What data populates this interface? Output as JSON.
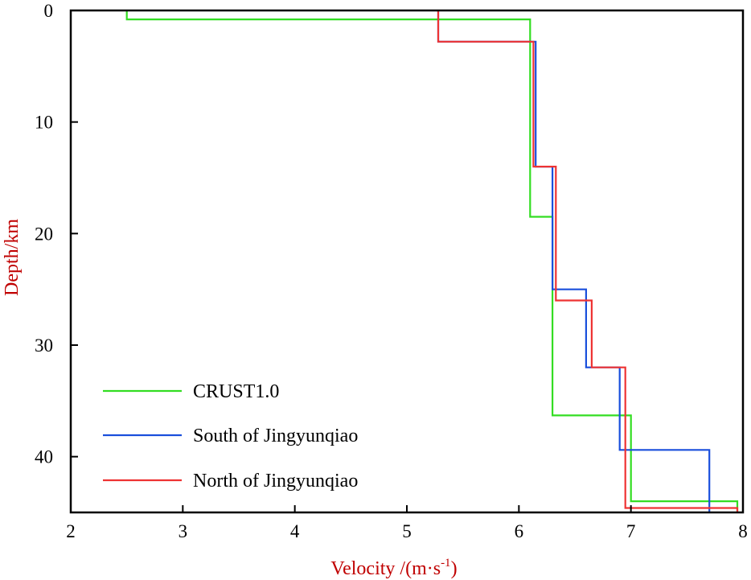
{
  "chart_data": {
    "type": "line",
    "title": "",
    "xlabel": "Velocity /(m·s",
    "xlabel_superscript": "-1",
    "xlabel_suffix": ")",
    "ylabel": "Depth/km",
    "xlim": [
      2,
      8
    ],
    "ylim": [
      0,
      45
    ],
    "y_inverted": true,
    "x_ticks": [
      2,
      3,
      4,
      5,
      6,
      7,
      8
    ],
    "y_ticks": [
      0,
      10,
      20,
      30,
      40
    ],
    "grid": false,
    "legend_position": "bottom-left",
    "series": [
      {
        "name": "CRUST1.0",
        "color": "#33dd22",
        "x": [
          2.5,
          2.5,
          6.1,
          6.1,
          6.3,
          6.3,
          7.0,
          7.0,
          7.95,
          7.95
        ],
        "y": [
          0,
          0.8,
          0.8,
          18.5,
          18.5,
          36.3,
          36.3,
          44.0,
          44.0,
          45
        ]
      },
      {
        "name": "South of Jingyunqiao",
        "color": "#1a4fdc",
        "x": [
          5.28,
          5.28,
          6.15,
          6.15,
          6.3,
          6.3,
          6.6,
          6.6,
          6.9,
          6.9,
          7.7,
          7.7
        ],
        "y": [
          0,
          2.8,
          2.8,
          14.0,
          14.0,
          25.0,
          25.0,
          32.0,
          32.0,
          39.4,
          39.4,
          45
        ]
      },
      {
        "name": "North of Jingyunqiao",
        "color": "#ee3333",
        "x": [
          5.28,
          5.28,
          6.13,
          6.13,
          6.33,
          6.33,
          6.65,
          6.65,
          6.95,
          6.95,
          7.95,
          7.95
        ],
        "y": [
          0,
          2.8,
          2.8,
          14.0,
          14.0,
          26.0,
          26.0,
          32.0,
          32.0,
          44.6,
          44.6,
          45
        ]
      }
    ]
  }
}
